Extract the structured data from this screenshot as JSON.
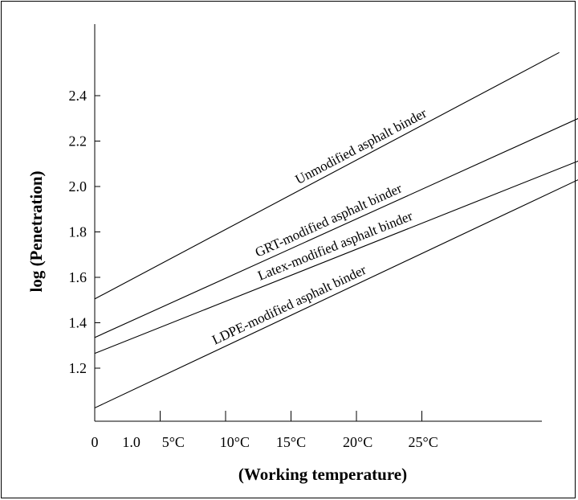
{
  "chart_data": {
    "type": "line",
    "xlabel": "(Working temperature)",
    "ylabel": "log (Penetration)",
    "x_ticks": [
      "0",
      "1.0",
      "5°C",
      "10°C",
      "15°C",
      "20°C",
      "25°C"
    ],
    "y_ticks": [
      "1.2",
      "1.4",
      "1.6",
      "1.8",
      "2.0",
      "2.2",
      "2.4"
    ],
    "ylim": [
      1.02,
      2.6
    ],
    "series": [
      {
        "name": "Unmodified asphalt binder",
        "points": [
          [
            0,
            1.505
          ],
          [
            35.5,
            2.59
          ]
        ]
      },
      {
        "name": "GRT-modified asphalt binder",
        "points": [
          [
            0,
            1.335
          ],
          [
            38.5,
            2.34
          ]
        ]
      },
      {
        "name": "Latex-modified asphalt binder",
        "points": [
          [
            0,
            1.265
          ],
          [
            41,
            2.205
          ]
        ]
      },
      {
        "name": "LDPE-modified asphalt binder",
        "points": [
          [
            0,
            1.025
          ],
          [
            41,
            2.14
          ]
        ]
      }
    ]
  }
}
